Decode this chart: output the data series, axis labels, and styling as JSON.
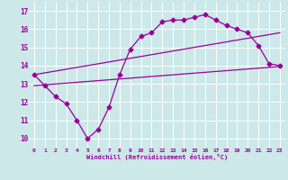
{
  "line1_x": [
    0,
    1,
    2,
    3,
    4,
    5,
    6,
    7,
    8,
    9,
    10,
    11,
    12,
    13,
    14,
    15,
    16,
    17,
    18,
    19,
    20,
    21,
    22,
    23
  ],
  "line1_y": [
    13.5,
    12.9,
    12.3,
    11.9,
    11.0,
    10.0,
    10.5,
    11.7,
    13.5,
    14.9,
    15.6,
    15.8,
    16.4,
    16.5,
    16.5,
    16.65,
    16.8,
    16.5,
    16.2,
    16.0,
    15.8,
    15.1,
    14.1,
    14.0
  ],
  "line2_x": [
    0,
    23
  ],
  "line2_y": [
    13.5,
    15.8
  ],
  "line3_x": [
    0,
    23
  ],
  "line3_y": [
    12.9,
    13.95
  ],
  "color": "#990099",
  "bg_color": "#cce8e8",
  "grid_color": "#ffffff",
  "xlabel": "Windchill (Refroidissement éolien,°C)",
  "xlim": [
    -0.5,
    23.5
  ],
  "ylim": [
    9.5,
    17.5
  ],
  "xticks": [
    0,
    1,
    2,
    3,
    4,
    5,
    6,
    7,
    8,
    9,
    10,
    11,
    12,
    13,
    14,
    15,
    16,
    17,
    18,
    19,
    20,
    21,
    22,
    23
  ],
  "yticks": [
    10,
    11,
    12,
    13,
    14,
    15,
    16,
    17
  ],
  "marker": "D",
  "markersize": 2.5,
  "linewidth": 0.9
}
